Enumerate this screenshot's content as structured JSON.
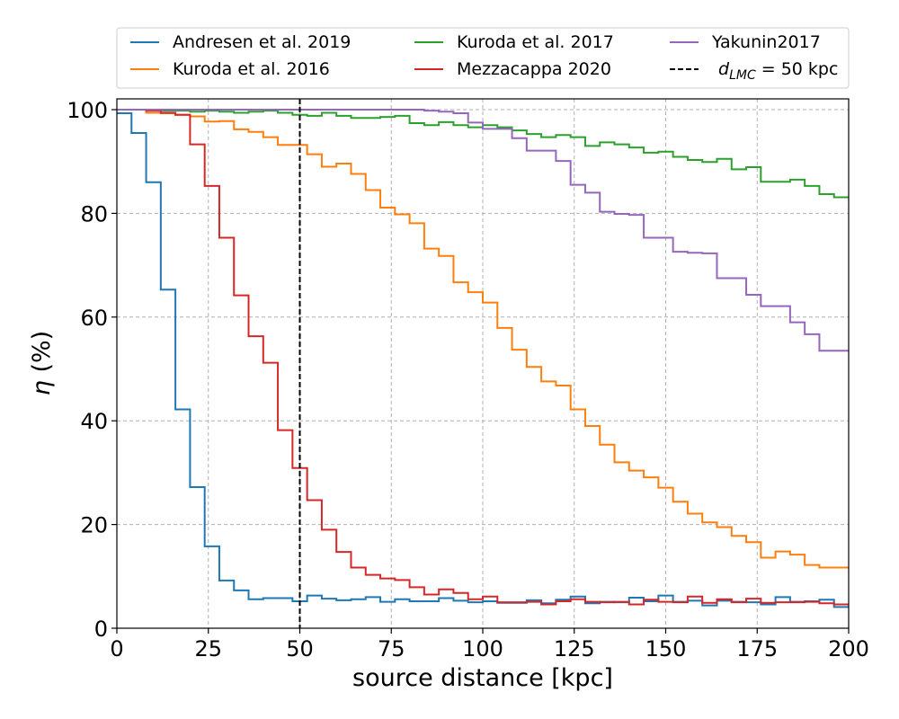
{
  "chart_data": {
    "type": "line",
    "style": "step",
    "title": "",
    "xlabel": "source distance [kpc]",
    "ylabel": "η (%)",
    "xlim": [
      0,
      200
    ],
    "ylim": [
      0,
      102
    ],
    "xticks": [
      0,
      25,
      50,
      75,
      100,
      125,
      150,
      175,
      200
    ],
    "yticks": [
      0,
      20,
      40,
      60,
      80,
      100
    ],
    "grid": true,
    "legend_position": "top-outside",
    "bin_edges": [
      0,
      4,
      8,
      12,
      16,
      20,
      24,
      28,
      32,
      36,
      40,
      44,
      48,
      52,
      56,
      60,
      64,
      68,
      72,
      76,
      80,
      84,
      88,
      92,
      96,
      100,
      104,
      108,
      112,
      116,
      120,
      124,
      128,
      132,
      136,
      140,
      144,
      148,
      152,
      156,
      160,
      164,
      168,
      172,
      176,
      180,
      184,
      188,
      192,
      196,
      200
    ],
    "series": [
      {
        "name": "Andresen et al. 2019",
        "color": "#1f77b4",
        "values": [
          99.3,
          95.5,
          86.0,
          65.3,
          42.2,
          27.2,
          15.8,
          9.2,
          7.3,
          5.6,
          5.8,
          5.8,
          5.2,
          6.3,
          5.7,
          5.4,
          5.6,
          6.0,
          5.1,
          5.6,
          5.2,
          5.2,
          5.8,
          5.3,
          5.0,
          5.2,
          4.9,
          4.9,
          5.4,
          4.8,
          5.5,
          6.1,
          4.8,
          5.1,
          5.0,
          5.9,
          5.2,
          6.3,
          5.1,
          5.3,
          4.4,
          5.3,
          5.1,
          5.0,
          4.6,
          6.0,
          5.1,
          5.2,
          5.5,
          4.1
        ]
      },
      {
        "name": "Kuroda et al. 2016",
        "color": "#ff7f0e",
        "values": [
          100.0,
          100.0,
          99.4,
          99.3,
          99.0,
          98.7,
          97.7,
          97.8,
          96.2,
          95.7,
          94.7,
          93.2,
          93.2,
          91.4,
          89.0,
          89.6,
          87.6,
          84.5,
          81.1,
          79.8,
          78.1,
          73.2,
          71.8,
          66.7,
          64.8,
          62.8,
          57.9,
          53.7,
          50.4,
          47.6,
          46.8,
          42.2,
          39.0,
          35.4,
          32.0,
          30.4,
          29.1,
          27.1,
          24.4,
          22.1,
          20.4,
          19.5,
          17.8,
          16.6,
          13.6,
          14.8,
          14.2,
          12.2,
          11.7,
          11.7
        ]
      },
      {
        "name": "Kuroda et al. 2017",
        "color": "#2ca02c",
        "values": [
          100.0,
          100.0,
          100.0,
          99.8,
          99.8,
          99.6,
          99.8,
          99.6,
          99.4,
          99.6,
          99.8,
          99.4,
          99.0,
          98.8,
          99.4,
          98.8,
          98.4,
          98.4,
          98.6,
          98.8,
          97.4,
          97.0,
          97.6,
          97.0,
          96.6,
          97.0,
          96.6,
          96.0,
          95.3,
          94.7,
          95.1,
          94.7,
          93.0,
          93.7,
          93.3,
          92.7,
          91.7,
          91.9,
          90.9,
          90.3,
          89.9,
          90.5,
          88.5,
          88.9,
          86.1,
          86.1,
          86.5,
          85.3,
          83.7,
          83.1
        ]
      },
      {
        "name": "Mezzacappa 2020",
        "color": "#d62728",
        "values": [
          100.0,
          100.0,
          99.8,
          99.4,
          99.0,
          93.3,
          85.3,
          75.3,
          64.2,
          56.3,
          51.2,
          38.2,
          30.9,
          24.7,
          19.0,
          14.7,
          11.7,
          10.3,
          9.6,
          9.3,
          7.9,
          6.5,
          7.5,
          6.8,
          5.6,
          6.1,
          5.0,
          5.0,
          5.1,
          4.6,
          5.2,
          5.6,
          5.1,
          5.0,
          5.1,
          4.6,
          5.5,
          5.1,
          5.0,
          6.1,
          4.9,
          5.6,
          5.0,
          5.7,
          4.9,
          5.0,
          5.0,
          5.1,
          4.8,
          4.6
        ]
      },
      {
        "name": "Yakunin2017",
        "color": "#9467bd",
        "values": [
          100.0,
          100.0,
          100.0,
          100.0,
          100.0,
          100.0,
          100.0,
          100.0,
          100.0,
          100.0,
          100.0,
          100.0,
          100.0,
          100.0,
          100.0,
          100.0,
          100.0,
          100.0,
          100.0,
          100.0,
          100.0,
          99.8,
          99.6,
          99.3,
          97.5,
          96.3,
          96.3,
          94.5,
          92.1,
          92.1,
          90.1,
          85.5,
          84.0,
          80.3,
          79.9,
          79.7,
          75.3,
          75.3,
          72.6,
          72.4,
          72.3,
          67.5,
          67.5,
          64.3,
          62.1,
          62.1,
          59.0,
          56.7,
          53.5,
          53.5
        ]
      }
    ],
    "reference_line": {
      "name": "d_LMC = 50 kpc",
      "x": 50,
      "color": "#000000",
      "dashed": true
    }
  },
  "legend": {
    "entries": [
      {
        "label": "Andresen et al. 2019",
        "color": "#1f77b4",
        "dashed": false
      },
      {
        "label": "Kuroda et al. 2017",
        "color": "#2ca02c",
        "dashed": false
      },
      {
        "label": "Yakunin2017",
        "color": "#9467bd",
        "dashed": false
      },
      {
        "label": "Kuroda et al. 2016",
        "color": "#ff7f0e",
        "dashed": false
      },
      {
        "label": "Mezzacappa 2020",
        "color": "#d62728",
        "dashed": false
      },
      {
        "label_main": "d",
        "label_sub": "LMC",
        "label_rest": " = 50 kpc",
        "color": "#000000",
        "dashed": true
      }
    ]
  }
}
